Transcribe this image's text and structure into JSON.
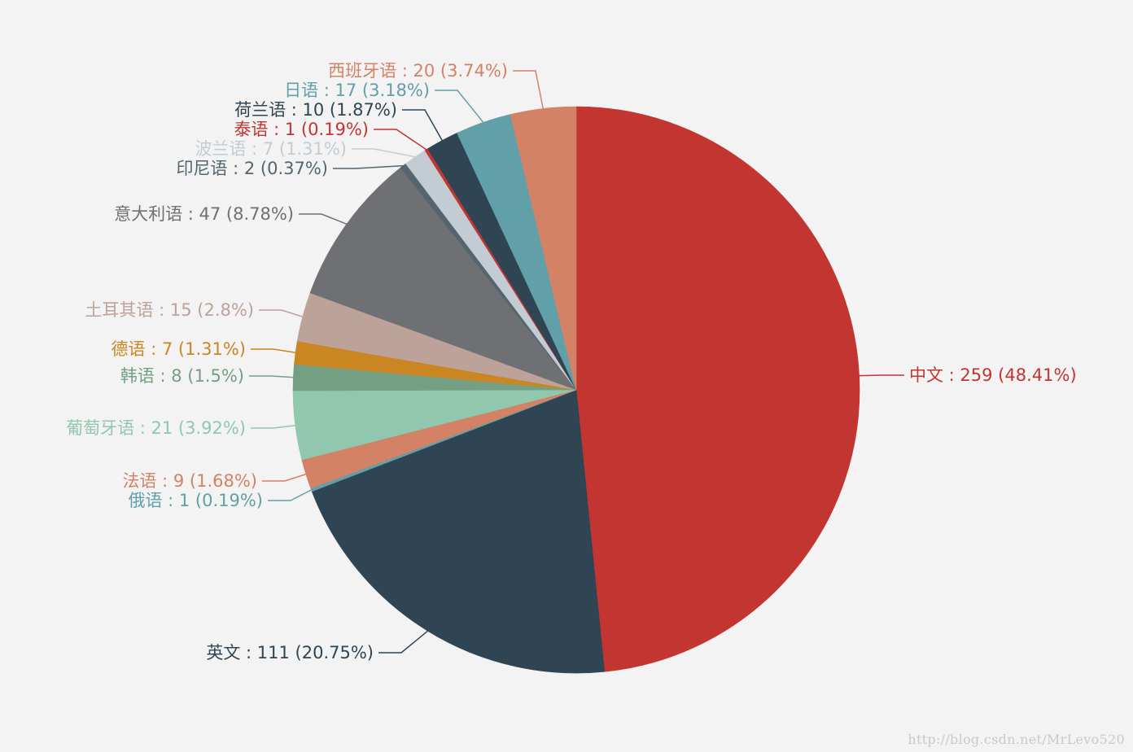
{
  "chart_data": {
    "type": "pie",
    "slices": [
      {
        "name": "中文",
        "value": 259,
        "percent": "48.41%",
        "color": "#c23531"
      },
      {
        "name": "英文",
        "value": 111,
        "percent": "20.75%",
        "color": "#2f4554"
      },
      {
        "name": "俄语",
        "value": 1,
        "percent": "0.19%",
        "color": "#61a0a8"
      },
      {
        "name": "法语",
        "value": 9,
        "percent": "1.68%",
        "color": "#d48265"
      },
      {
        "name": "葡萄牙语",
        "value": 21,
        "percent": "3.92%",
        "color": "#91c7ae"
      },
      {
        "name": "韩语",
        "value": 8,
        "percent": "1.5%",
        "color": "#749f83"
      },
      {
        "name": "德语",
        "value": 7,
        "percent": "1.31%",
        "color": "#ca8622"
      },
      {
        "name": "土耳其语",
        "value": 15,
        "percent": "2.8%",
        "color": "#bda29a"
      },
      {
        "name": "意大利语",
        "value": 47,
        "percent": "8.78%",
        "color": "#6e7074"
      },
      {
        "name": "印尼语",
        "value": 2,
        "percent": "0.37%",
        "color": "#546570"
      },
      {
        "name": "波兰语",
        "value": 7,
        "percent": "1.31%",
        "color": "#c4ccd3"
      },
      {
        "name": "泰语",
        "value": 1,
        "percent": "0.19%",
        "color": "#c23531"
      },
      {
        "name": "荷兰语",
        "value": 10,
        "percent": "1.87%",
        "color": "#2f4554"
      },
      {
        "name": "日语",
        "value": 17,
        "percent": "3.18%",
        "color": "#61a0a8"
      },
      {
        "name": "西班牙语",
        "value": 20,
        "percent": "3.74%",
        "color": "#d48265"
      }
    ],
    "label_separator": " : ",
    "background": "#f3f3f3"
  },
  "watermark": "http://blog.csdn.net/MrLevo520"
}
